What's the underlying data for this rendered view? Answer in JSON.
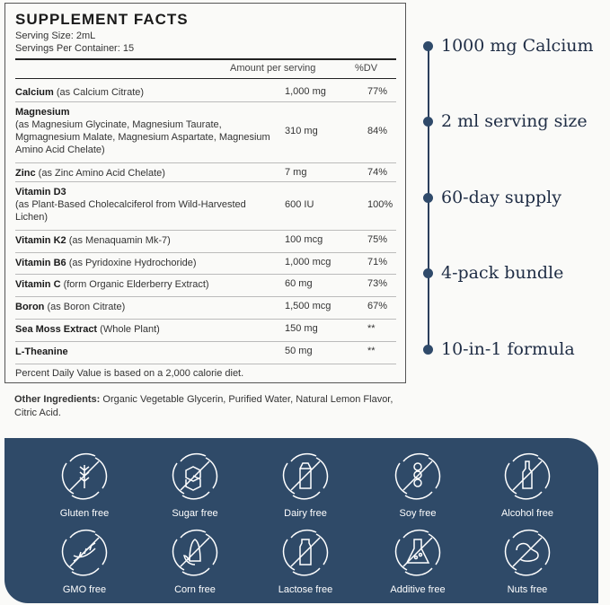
{
  "facts": {
    "title": "SUPPLEMENT FACTS",
    "serving_size": "Serving Size: 2mL",
    "servings_per_container": "Servings Per Container: 15",
    "col_amount": "Amount per serving",
    "col_dv": "%DV",
    "rows": [
      {
        "name": "Calcium",
        "detail": " (as Calcium Citrate)",
        "amount": "1,000 mg",
        "dv": "77%"
      },
      {
        "name": "Magnesium",
        "detail": "(as Magnesium Glycinate, Magnesium Taurate, Mgmagnesium Malate, Magnesium Aspartate, Magnesium Amino Acid Chelate)",
        "amount": "310 mg",
        "dv": "84%"
      },
      {
        "name": "Zinc",
        "detail": " (as Zinc Amino Acid Chelate)",
        "amount": "7 mg",
        "dv": "74%"
      },
      {
        "name": "Vitamin D3",
        "detail": "(as Plant-Based Cholecalciferol from Wild-Harvested Lichen)",
        "amount": "600 IU",
        "dv": "100%"
      },
      {
        "name": "Vitamin K2",
        "detail": " (as Menaquamin Mk-7)",
        "amount": "100 mcg",
        "dv": "75%"
      },
      {
        "name": "Vitamin B6",
        "detail": " (as Pyridoxine Hydrochoride)",
        "amount": "1,000 mcg",
        "dv": "71%"
      },
      {
        "name": "Vitamin C",
        "detail": " (form Organic Elderberry Extract)",
        "amount": "60 mg",
        "dv": "73%"
      },
      {
        "name": "Boron",
        "detail": " (as Boron Citrate)",
        "amount": "1,500 mcg",
        "dv": "67%"
      },
      {
        "name": "Sea Moss Extract",
        "detail": " (Whole Plant)",
        "amount": "150 mg",
        "dv": "**"
      },
      {
        "name": "L-Theanine",
        "detail": "",
        "amount": "50 mg",
        "dv": "**"
      }
    ],
    "footnote": "Percent Daily Value is based on a 2,000 calorie diet."
  },
  "other_ingredients": {
    "label": "Other Ingredients:",
    "text": " Organic Vegetable Glycerin, Purified Water, Natural Lemon Flavor, Citric Acid."
  },
  "highlights": [
    "1000 mg Calcium",
    "2 ml serving size",
    "60-day supply",
    "4-pack bundle",
    "10-in-1 formula"
  ],
  "badges": [
    {
      "label": "Gluten free",
      "icon": "wheat-icon"
    },
    {
      "label": "Sugar free",
      "icon": "sugar-cubes-icon"
    },
    {
      "label": "Dairy free",
      "icon": "milk-carton-icon"
    },
    {
      "label": "Soy free",
      "icon": "soybean-icon"
    },
    {
      "label": "Alcohol free",
      "icon": "bottle-icon"
    },
    {
      "label": "GMO free",
      "icon": "dna-icon"
    },
    {
      "label": "Corn free",
      "icon": "corn-icon"
    },
    {
      "label": "Lactose free",
      "icon": "milk-bottle-icon"
    },
    {
      "label": "Additive free",
      "icon": "flask-icon"
    },
    {
      "label": "Nuts free",
      "icon": "nut-icon"
    }
  ],
  "colors": {
    "panel": "#2f4a68",
    "accent_text": "#1f2d45"
  }
}
